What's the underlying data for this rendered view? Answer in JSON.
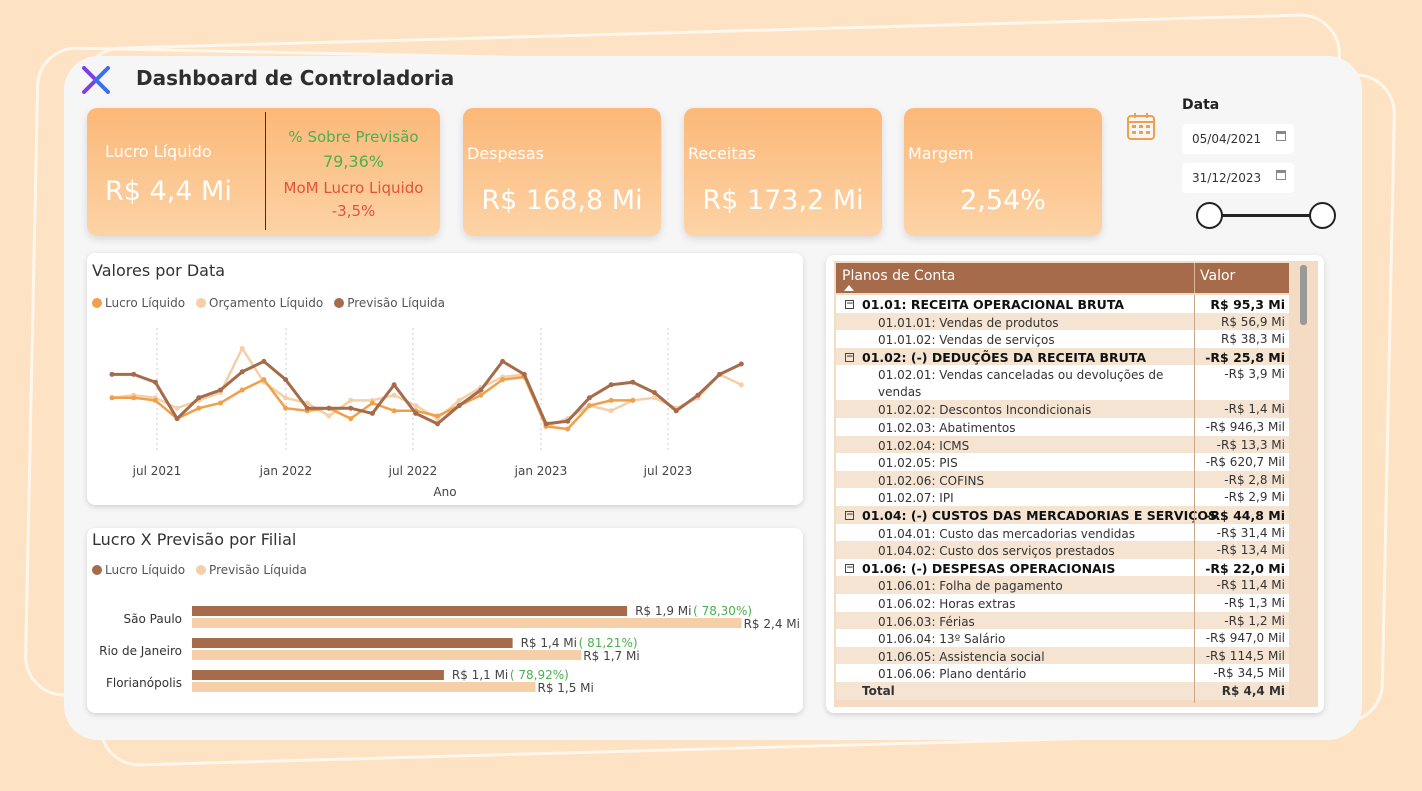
{
  "header": {
    "title": "Dashboard de Controladoria"
  },
  "kpis": {
    "lucro": {
      "label": "Lucro Líquido",
      "value": "R$ 4,4 Mi",
      "prev_label": "% Sobre Previsão",
      "prev_value": "79,36%",
      "mom_label": "MoM Lucro Liquido",
      "mom_value": "-3,5%"
    },
    "despesas": {
      "label": "Despesas",
      "value": "R$ 168,8 Mi"
    },
    "receitas": {
      "label": "Receitas",
      "value": "R$ 173,2 Mi"
    },
    "margem": {
      "label": "Margem",
      "value": "2,54%"
    }
  },
  "date_filter": {
    "title": "Data",
    "start": "05/04/2021",
    "end": "31/12/2023"
  },
  "line_chart": {
    "title": "Valores por Data",
    "legend": [
      "Lucro Líquido",
      "Orçamento Líquido",
      "Previsão Líquida"
    ],
    "x_ticks": [
      "jul 2021",
      "jan 2022",
      "jul 2022",
      "jan 2023",
      "jul 2023"
    ],
    "xlabel": "Ano"
  },
  "bar_chart": {
    "title": "Lucro X Previsão por Filial",
    "legend": [
      "Lucro Líquido",
      "Previsão Líquida"
    ],
    "rows": [
      {
        "name": "São Paulo",
        "lucro_label": "R$ 1,9 Mi",
        "pct": "( 78,30%)",
        "prev_label": "R$ 2,4 Mi"
      },
      {
        "name": "Rio de Janeiro",
        "lucro_label": "R$ 1,4 Mi",
        "pct": "( 81,21%)",
        "prev_label": "R$ 1,7 Mi"
      },
      {
        "name": "Florianópolis",
        "lucro_label": "R$ 1,1 Mi",
        "pct": "( 78,92%)",
        "prev_label": "R$ 1,5 Mi"
      }
    ]
  },
  "chart_data": [
    {
      "type": "line",
      "title": "Valores por Data",
      "xlabel": "Ano",
      "x_ticks": [
        "jul 2021",
        "jan 2022",
        "jul 2022",
        "jan 2023",
        "jul 2023"
      ],
      "series": [
        {
          "name": "Lucro Líquido",
          "color": "#f0a04b",
          "values": [
            0.2,
            0.2,
            0.1,
            -0.6,
            -0.2,
            0.0,
            0.5,
            0.9,
            -0.2,
            -0.3,
            -0.2,
            -0.6,
            0.0,
            -0.3,
            -0.3,
            -0.5,
            -0.1,
            0.3,
            0.9,
            1.0,
            -0.9,
            -1.0,
            -0.1,
            0.1,
            0.1
          ]
        },
        {
          "name": "Orçamento Líquido",
          "color": "#f4cfa7",
          "values": [
            0.2,
            0.3,
            0.2,
            -0.2,
            0.1,
            0.4,
            2.1,
            0.8,
            0.2,
            0.0,
            -0.5,
            0.1,
            0.1,
            0.3,
            -0.1,
            -0.6,
            0.1,
            0.6,
            1.0,
            1.1,
            -0.9,
            -0.6,
            -0.1,
            -0.3,
            0.1,
            0.2,
            -0.2,
            0.2,
            1.1,
            0.7
          ]
        },
        {
          "name": "Previsão Líquida",
          "color": "#a56b4a",
          "values": [
            1.1,
            1.1,
            0.8,
            -0.6,
            0.2,
            0.5,
            1.2,
            1.6,
            0.9,
            -0.2,
            -0.2,
            -0.2,
            -0.4,
            0.7,
            -0.4,
            -0.8,
            -0.1,
            0.5,
            1.6,
            1.1,
            -0.8,
            -0.7,
            0.2,
            0.7,
            0.8,
            0.4,
            -0.3,
            0.3,
            1.1,
            1.5
          ]
        }
      ]
    },
    {
      "type": "bar",
      "title": "Lucro X Previsão por Filial",
      "categories": [
        "São Paulo",
        "Rio de Janeiro",
        "Florianópolis"
      ],
      "series": [
        {
          "name": "Lucro Líquido",
          "color": "#a56b4a",
          "values": [
            1.9,
            1.4,
            1.1
          ]
        },
        {
          "name": "Previsão Líquida",
          "color": "#f4cfa7",
          "values": [
            2.4,
            1.7,
            1.5
          ]
        }
      ]
    }
  ],
  "table": {
    "headers": [
      "Planos de Conta",
      "Valor"
    ],
    "rows": [
      {
        "kind": "grp",
        "name": "01.01: RECEITA OPERACIONAL BRUTA",
        "value": "R$ 95,3 Mi"
      },
      {
        "kind": "sub",
        "name": "01.01.01: Vendas de produtos",
        "value": "R$ 56,9 Mi"
      },
      {
        "kind": "sub",
        "name": "01.01.02: Vendas de serviços",
        "value": "R$ 38,3 Mi"
      },
      {
        "kind": "grp",
        "name": "01.02: (-) DEDUÇÕES DA RECEITA BRUTA",
        "value": "-R$ 25,8 Mi"
      },
      {
        "kind": "sub2",
        "name": "01.02.01: Vendas canceladas ou devoluções de vendas",
        "value": "-R$ 3,9 Mi"
      },
      {
        "kind": "sub",
        "name": "01.02.02: Descontos Incondicionais",
        "value": "-R$ 1,4 Mi"
      },
      {
        "kind": "sub",
        "name": "01.02.03: Abatimentos",
        "value": "-R$ 946,3 Mil"
      },
      {
        "kind": "sub",
        "name": "01.02.04: ICMS",
        "value": "-R$ 13,3 Mi"
      },
      {
        "kind": "sub",
        "name": "01.02.05: PIS",
        "value": "-R$ 620,7 Mil"
      },
      {
        "kind": "sub",
        "name": "01.02.06: COFINS",
        "value": "-R$ 2,8 Mi"
      },
      {
        "kind": "sub",
        "name": "01.02.07: IPI",
        "value": "-R$ 2,9 Mi"
      },
      {
        "kind": "grp",
        "name": "01.04: (-) CUSTOS DAS MERCADORIAS E SERVIÇOS",
        "value": "-R$ 44,8 Mi"
      },
      {
        "kind": "sub",
        "name": "01.04.01: Custo das mercadorias vendidas",
        "value": "-R$ 31,4 Mi"
      },
      {
        "kind": "sub",
        "name": "01.04.02: Custo dos serviços prestados",
        "value": "-R$ 13,4 Mi"
      },
      {
        "kind": "grp",
        "name": "01.06: (-) DESPESAS OPERACIONAIS",
        "value": "-R$ 22,0 Mi"
      },
      {
        "kind": "sub",
        "name": "01.06.01: Folha de pagamento",
        "value": "-R$ 11,4 Mi"
      },
      {
        "kind": "sub",
        "name": "01.06.02: Horas extras",
        "value": "-R$ 1,3 Mi"
      },
      {
        "kind": "sub",
        "name": "01.06.03: Férias",
        "value": "-R$ 1,2 Mi"
      },
      {
        "kind": "sub",
        "name": "01.06.04: 13º Salário",
        "value": "-R$ 947,0 Mil"
      },
      {
        "kind": "sub",
        "name": "01.06.05: Assistencia social",
        "value": "-R$ 114,5 Mil"
      },
      {
        "kind": "sub",
        "name": "01.06.06: Plano dentário",
        "value": "-R$ 34,5 Mil"
      },
      {
        "kind": "total",
        "name": "Total",
        "value": "R$ 4,4 Mi"
      }
    ]
  }
}
